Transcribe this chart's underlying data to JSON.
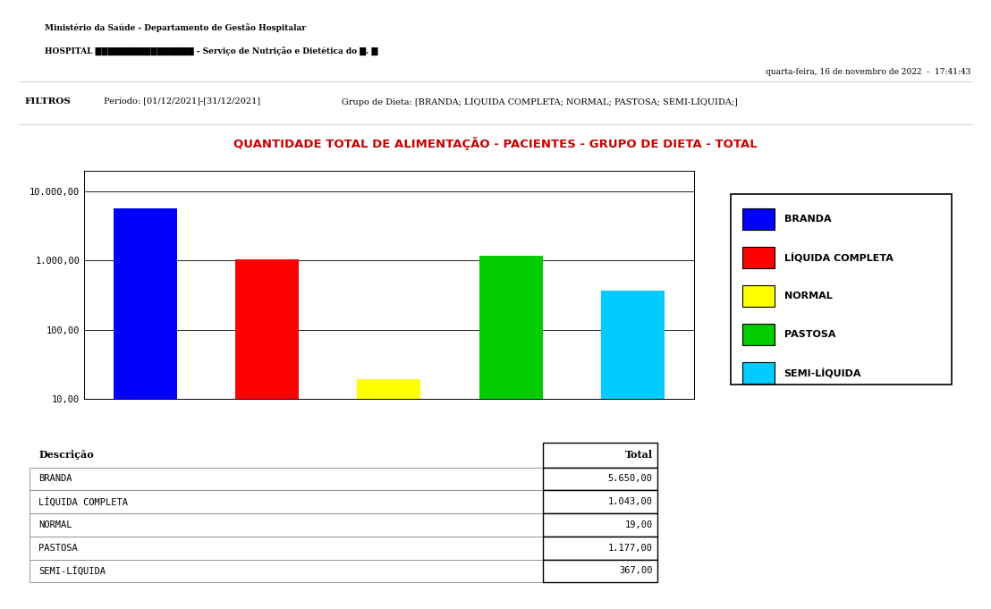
{
  "title": "QUANTIDADE TOTAL DE ALIMENTAÇÃO - PACIENTES - GRUPO DE DIETA - TOTAL",
  "title_color": "#cc0000",
  "categories": [
    "BRANDA",
    "LÍQUIDA COMPLETA",
    "NORMAL",
    "PASTOSA",
    "SEMI-LÍQUIDA"
  ],
  "values": [
    5650,
    1043,
    19,
    1177,
    367
  ],
  "bar_colors": [
    "#0000ff",
    "#ff0000",
    "#ffff00",
    "#00cc00",
    "#00ccff"
  ],
  "header_line1": "Ministério da Saúde - Departamento de Gestão Hospitalar",
  "header_line2": "HOSPITAL ████████████████ - Serviço de Nutrição e Dietética do █. █",
  "date_text": "quarta-feira, 16 de novembro de 2022  -  17:41:43",
  "filter_label": "FILTROS",
  "filter_period": "Período: [01/12/2021]-[31/12/2021]",
  "filter_group": "Grupo de Dieta: [BRANDA; LÍQUIDA COMPLETA; NORMAL; PASTOSA; SEMI-LÍQUIDA;]",
  "table_headers": [
    "Descrição",
    "Total"
  ],
  "table_rows": [
    [
      "BRANDA",
      "5.650,00"
    ],
    [
      "LÍQUIDA COMPLETA",
      "1.043,00"
    ],
    [
      "NORMAL",
      "19,00"
    ],
    [
      "PASTOSA",
      "1.177,00"
    ],
    [
      "SEMI-LÍQUIDA",
      "367,00"
    ]
  ],
  "yticks": [
    10,
    100,
    1000,
    10000
  ],
  "ytick_labels": [
    "10,00",
    "100,00",
    "1.000,00",
    "10.000,00"
  ],
  "legend_entries": [
    "BRANDA",
    "LÍQUIDA COMPLETA",
    "NORMAL",
    "PASTOSA",
    "SEMI-LÍQUIDA"
  ],
  "legend_colors": [
    "#0000ff",
    "#ff0000",
    "#ffff00",
    "#00cc00",
    "#00ccff"
  ],
  "background_color": "#ffffff"
}
